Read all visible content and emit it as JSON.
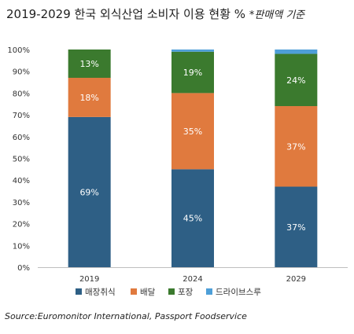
{
  "chart_data": {
    "type": "bar",
    "stacked": true,
    "title": "2019-2029 한국 외식산업 소비자 이용 현황 %",
    "title_note": "*판매액 기준",
    "categories": [
      "2019",
      "2024",
      "2029"
    ],
    "series": [
      {
        "name": "매장취식",
        "values": [
          69,
          45,
          37
        ],
        "color": "#2E5F85",
        "labels": [
          "69%",
          "45%",
          "37%"
        ]
      },
      {
        "name": "배달",
        "values": [
          18,
          35,
          37
        ],
        "color": "#E07A3E",
        "labels": [
          "18%",
          "35%",
          "37%"
        ]
      },
      {
        "name": "포장",
        "values": [
          13,
          19,
          24
        ],
        "color": "#3B7A2E",
        "labels": [
          "13%",
          "19%",
          "24%"
        ]
      },
      {
        "name": "드라이브스루",
        "values": [
          0,
          1,
          2
        ],
        "color": "#4E9FD8",
        "labels": [
          "",
          "",
          ""
        ]
      }
    ],
    "ylim": [
      0,
      100
    ],
    "yticks": [
      "0%",
      "10%",
      "20%",
      "30%",
      "40%",
      "50%",
      "60%",
      "70%",
      "80%",
      "90%",
      "100%"
    ],
    "legend_position": "bottom",
    "grid": false
  },
  "source": "Source:Euromonitor International, Passport Foodservice"
}
